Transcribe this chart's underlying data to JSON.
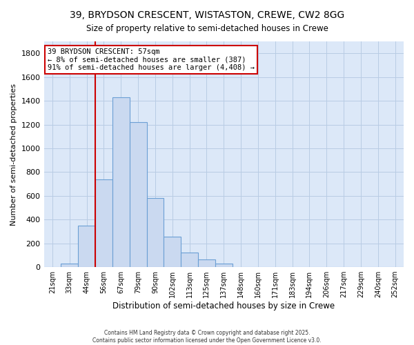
{
  "title": "39, BRYDSON CRESCENT, WISTASTON, CREWE, CW2 8GG",
  "subtitle": "Size of property relative to semi-detached houses in Crewe",
  "xlabel": "Distribution of semi-detached houses by size in Crewe",
  "ylabel": "Number of semi-detached properties",
  "categories": [
    "21sqm",
    "33sqm",
    "44sqm",
    "56sqm",
    "67sqm",
    "79sqm",
    "90sqm",
    "102sqm",
    "113sqm",
    "125sqm",
    "137sqm",
    "148sqm",
    "160sqm",
    "171sqm",
    "183sqm",
    "194sqm",
    "206sqm",
    "217sqm",
    "229sqm",
    "240sqm",
    "252sqm"
  ],
  "values": [
    0,
    30,
    350,
    740,
    1430,
    1220,
    580,
    258,
    125,
    65,
    30,
    0,
    0,
    0,
    0,
    0,
    0,
    0,
    0,
    0,
    0
  ],
  "bar_color": "#cad9f0",
  "bar_edge_color": "#6b9fd4",
  "property_line_color": "#cc0000",
  "property_line_index": 2.5,
  "ylim": [
    0,
    1900
  ],
  "yticks": [
    0,
    200,
    400,
    600,
    800,
    1000,
    1200,
    1400,
    1600,
    1800
  ],
  "annotation_title": "39 BRYDSON CRESCENT: 57sqm",
  "annotation_line1": "← 8% of semi-detached houses are smaller (387)",
  "annotation_line2": "91% of semi-detached houses are larger (4,408) →",
  "annotation_box_color": "#ffffff",
  "annotation_box_edgecolor": "#cc0000",
  "plot_bg_color": "#dce8f8",
  "background_color": "#ffffff",
  "grid_color": "#b8cce4",
  "footnote1": "Contains HM Land Registry data © Crown copyright and database right 2025.",
  "footnote2": "Contains public sector information licensed under the Open Government Licence v3.0."
}
